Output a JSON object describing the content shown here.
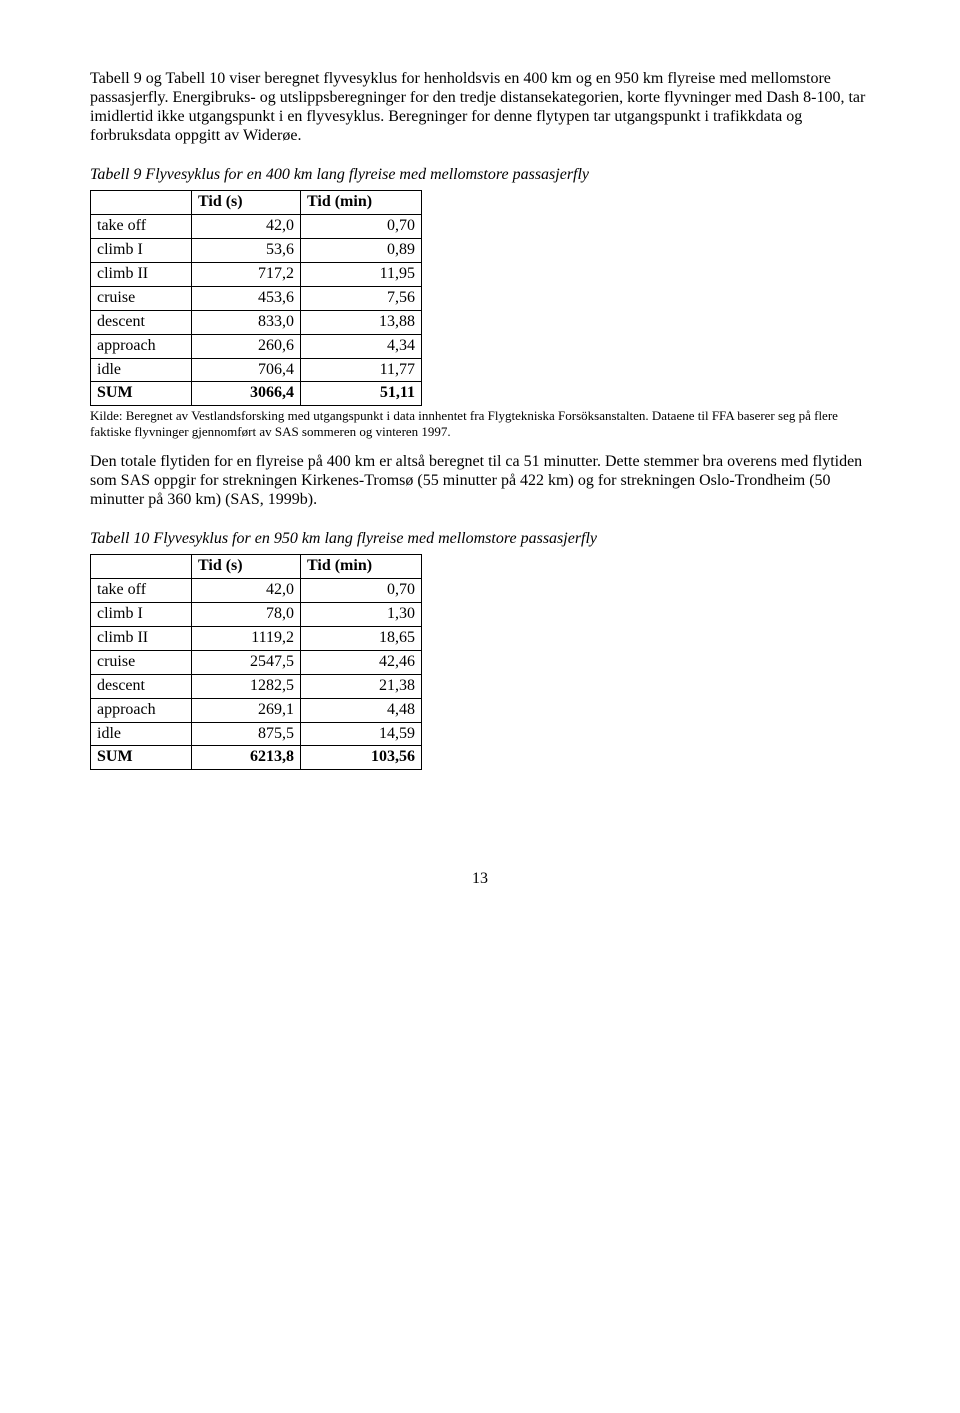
{
  "p1": "Tabell 9 og Tabell 10 viser beregnet flyvesyklus for henholdsvis en 400 km og en 950 km flyreise med mellomstore passasjerfly. Energibruks- og utslippsberegninger for den tredje distansekategorien, korte flyvninger med Dash 8-100, tar imidlertid ikke utgangspunkt i en flyvesyklus. Beregninger for denne flytypen tar utgangspunkt i trafikkdata og forbruksdata oppgitt av Widerøe.",
  "t9": {
    "caption": "Tabell 9 Flyvesyklus for en 400 km lang flyreise med mellomstore passasjerfly",
    "h_blank": "",
    "h_s": "Tid (s)",
    "h_min": "Tid (min)",
    "rows": [
      {
        "l": "take off",
        "s": "42,0",
        "m": "0,70"
      },
      {
        "l": "climb I",
        "s": "53,6",
        "m": "0,89"
      },
      {
        "l": "climb II",
        "s": "717,2",
        "m": "11,95"
      },
      {
        "l": "cruise",
        "s": "453,6",
        "m": "7,56"
      },
      {
        "l": "descent",
        "s": "833,0",
        "m": "13,88"
      },
      {
        "l": "approach",
        "s": "260,6",
        "m": "4,34"
      },
      {
        "l": "idle",
        "s": "706,4",
        "m": "11,77"
      }
    ],
    "sum": {
      "l": "SUM",
      "s": "3066,4",
      "m": "51,11"
    },
    "source": "Kilde: Beregnet av Vestlandsforsking med utgangspunkt i data innhentet fra Flygtekniska Forsöksanstalten. Dataene til FFA baserer seg på flere faktiske flyvninger gjennomført av SAS sommeren og vinteren 1997."
  },
  "p2": "Den totale flytiden for en flyreise på 400 km er altså beregnet til ca 51 minutter. Dette stemmer bra overens med flytiden som SAS oppgir for strekningen Kirkenes-Tromsø (55 minutter på 422 km) og for strekningen Oslo-Trondheim (50 minutter på 360 km) (SAS, 1999b).",
  "t10": {
    "caption": "Tabell 10 Flyvesyklus for en 950 km lang flyreise med mellomstore passasjerfly",
    "h_blank": "",
    "h_s": "Tid (s)",
    "h_min": "Tid (min)",
    "rows": [
      {
        "l": "take off",
        "s": "42,0",
        "m": "0,70"
      },
      {
        "l": "climb I",
        "s": "78,0",
        "m": "1,30"
      },
      {
        "l": "climb II",
        "s": "1119,2",
        "m": "18,65"
      },
      {
        "l": "cruise",
        "s": "2547,5",
        "m": "42,46"
      },
      {
        "l": "descent",
        "s": "1282,5",
        "m": "21,38"
      },
      {
        "l": "approach",
        "s": "269,1",
        "m": "4,48"
      },
      {
        "l": "idle",
        "s": "875,5",
        "m": "14,59"
      }
    ],
    "sum": {
      "l": "SUM",
      "s": "6213,8",
      "m": "103,56"
    }
  },
  "page_number": "13"
}
